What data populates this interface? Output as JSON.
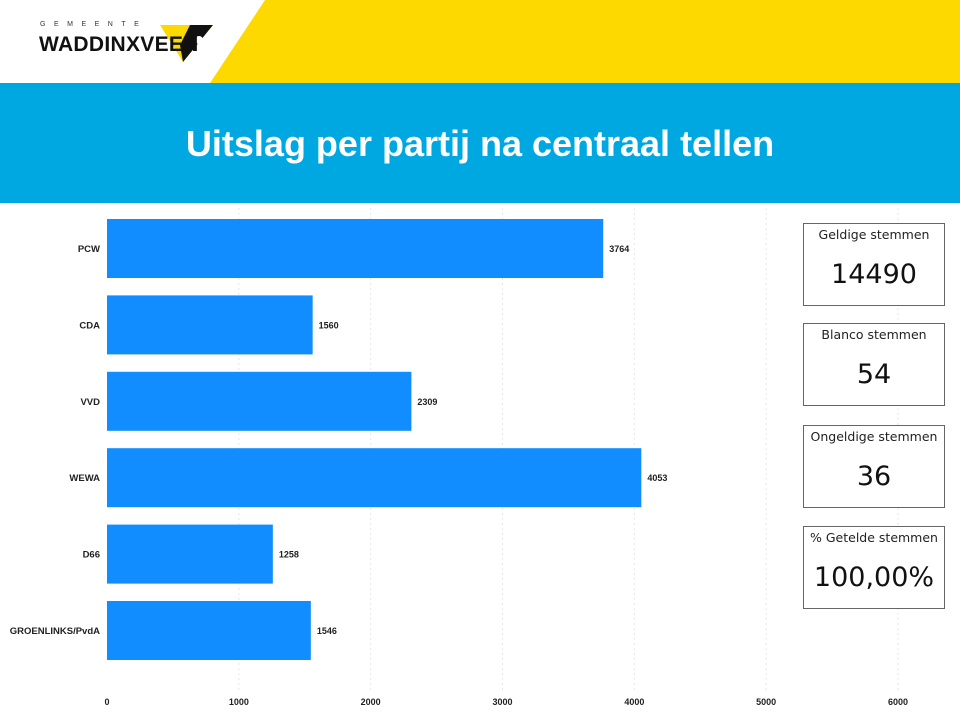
{
  "header": {
    "logo_top": "GEMEENTE",
    "logo_name": "WADDINXVEEN",
    "title": "Uitslag per partij na centraal tellen"
  },
  "colors": {
    "bar": "#118dff",
    "banner": "#00a8e1",
    "yellow": "#fdd900"
  },
  "cards": [
    {
      "label": "Geldige stemmen",
      "value": "14490"
    },
    {
      "label": "Blanco stemmen",
      "value": "54"
    },
    {
      "label": "Ongeldige stemmen",
      "value": "36"
    },
    {
      "label": "% Getelde stemmen",
      "value": "100,00%"
    }
  ],
  "chart_data": {
    "type": "bar",
    "orientation": "horizontal",
    "categories": [
      "PCW",
      "CDA",
      "VVD",
      "WEWA",
      "D66",
      "GROENLINKS/PvdA"
    ],
    "values": [
      3764,
      1560,
      2309,
      4053,
      1258,
      1546
    ],
    "xlim": [
      0,
      6000
    ],
    "xticks": [
      "0",
      "1000",
      "2000",
      "3000",
      "4000",
      "5000",
      "6000"
    ],
    "grid": true,
    "title": "",
    "xlabel": "",
    "ylabel": ""
  }
}
